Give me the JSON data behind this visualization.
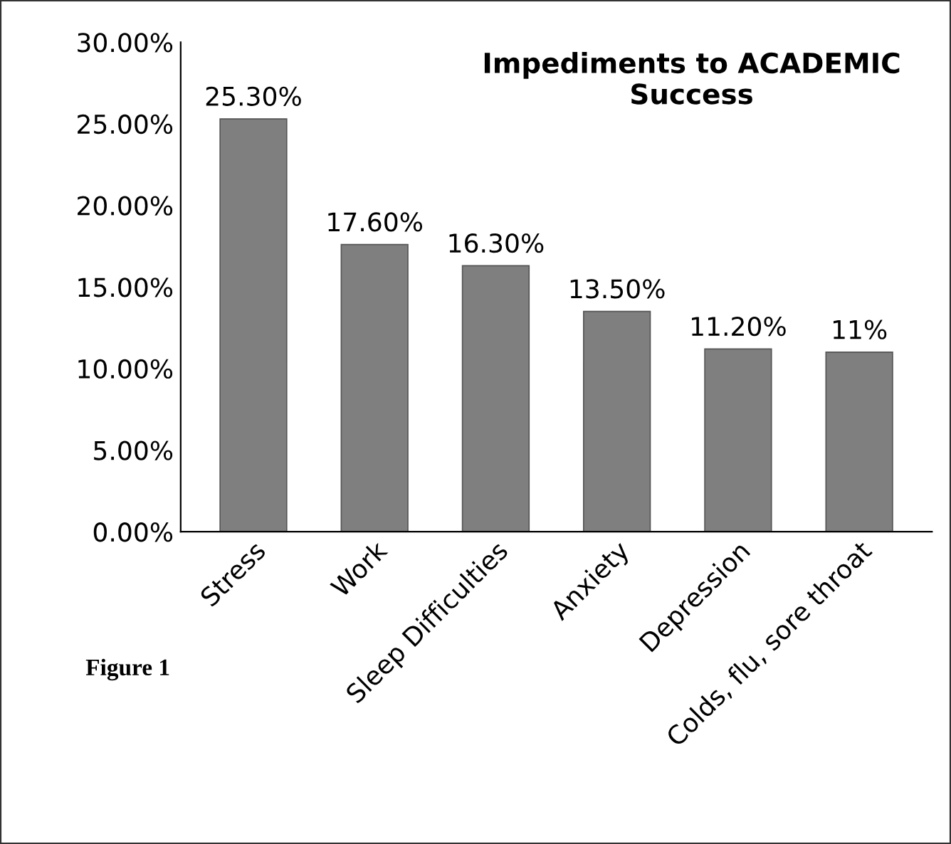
{
  "chart_data": {
    "type": "bar",
    "title": "Impediments to ACADEMIC Success",
    "categories": [
      "Stress",
      "Work",
      "Sleep Difficulties",
      "Anxiety",
      "Depression",
      "Colds, flu, sore throat"
    ],
    "values": [
      25.3,
      17.6,
      16.3,
      13.5,
      11.2,
      11
    ],
    "value_labels": [
      "25.30%",
      "17.60%",
      "16.30%",
      "13.50%",
      "11.20%",
      "11%"
    ],
    "color": "#7f7f7f",
    "ylim": [
      0,
      30
    ],
    "yticks": [
      {
        "value": 0,
        "label": "0.00%"
      },
      {
        "value": 5,
        "label": "5.00%"
      },
      {
        "value": 10,
        "label": "10.00%"
      },
      {
        "value": 15,
        "label": "15.00%"
      },
      {
        "value": 20,
        "label": "20.00%"
      },
      {
        "value": 25,
        "label": "25.00%"
      },
      {
        "value": 30,
        "label": "30.00%"
      }
    ],
    "grid": false,
    "legend": false,
    "annotations": [
      "Figure 1"
    ]
  }
}
